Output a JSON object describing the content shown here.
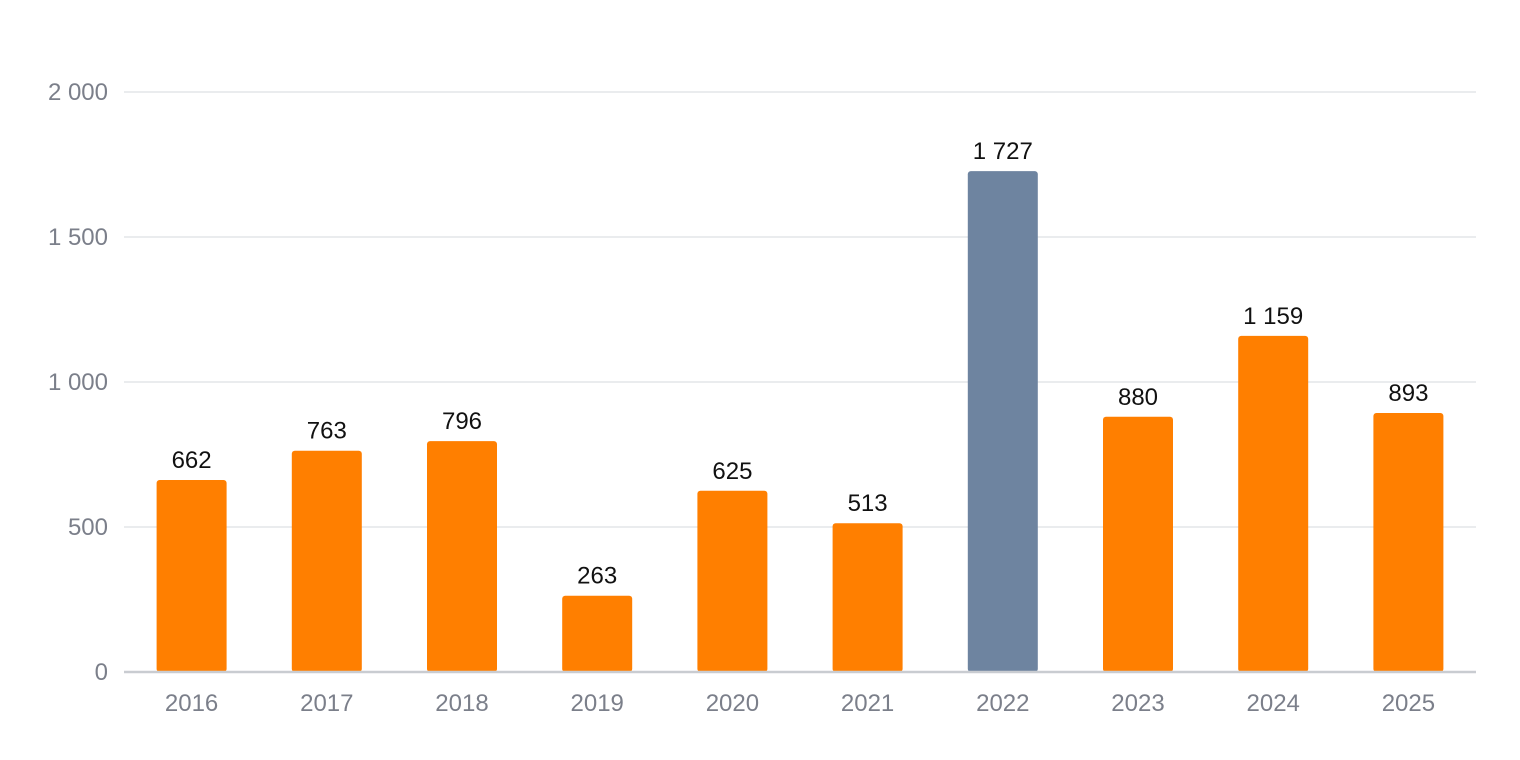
{
  "chart_data": {
    "type": "bar",
    "title": "",
    "xlabel": "",
    "ylabel": "",
    "categories": [
      "2016",
      "2017",
      "2018",
      "2019",
      "2020",
      "2021",
      "2022",
      "2023",
      "2024",
      "2025"
    ],
    "values": [
      662,
      763,
      796,
      263,
      625,
      513,
      1727,
      880,
      1159,
      893
    ],
    "value_labels": [
      "662",
      "763",
      "796",
      "263",
      "625",
      "513",
      "1 727",
      "880",
      "1 159",
      "893"
    ],
    "ylim": [
      0,
      2000
    ],
    "y_ticks": [
      0,
      500,
      1000,
      1500,
      2000
    ],
    "y_tick_labels": [
      "0",
      "500",
      "1 000",
      "1 500",
      "2 000"
    ],
    "grid": true,
    "legend": "none",
    "colors": {
      "default_bar": "#ff7f00",
      "highlight_bar": "#6e84a0"
    },
    "highlight_category": "2022"
  }
}
